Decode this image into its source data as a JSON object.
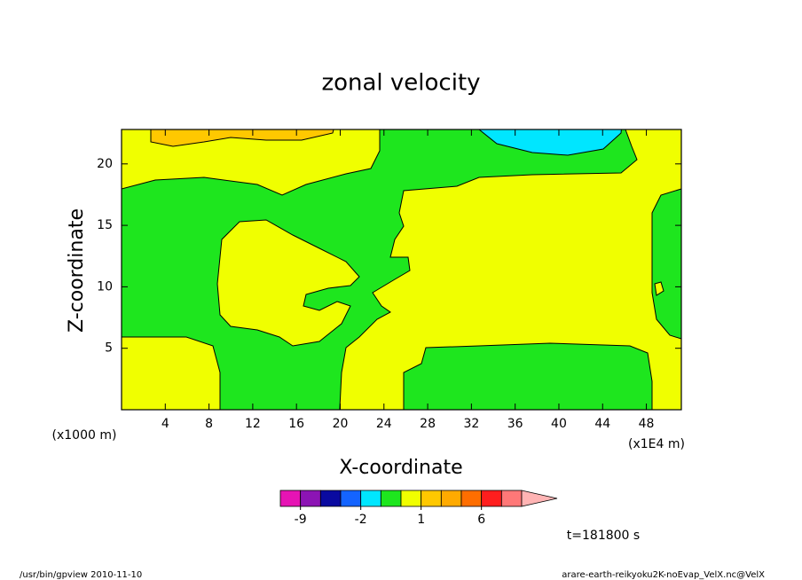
{
  "chart_data": {
    "type": "contour",
    "title": "zonal velocity",
    "xlabel": "X-coordinate",
    "ylabel": "Z-coordinate",
    "x_unit_label": "(x1000 m)",
    "x_unit_label_2": "(x1E4 m)",
    "xlim": [
      0,
      51.2
    ],
    "ylim": [
      0,
      22.8
    ],
    "xticks": [
      4,
      8,
      12,
      16,
      20,
      24,
      28,
      32,
      36,
      40,
      44,
      48
    ],
    "yticks": [
      5,
      10,
      15,
      20
    ],
    "colorbar": {
      "levels": [
        -12,
        -9,
        -6,
        -3,
        -2,
        -1,
        0,
        1,
        2,
        3,
        6,
        9,
        12
      ],
      "colors": [
        "#e614b4",
        "#8c14b4",
        "#0a0aa0",
        "#1464ff",
        "#00e6ff",
        "#1ee61e",
        "#f0ff00",
        "#ffc800",
        "#ffaa00",
        "#ff6e00",
        "#ff1e1e",
        "#ff7878"
      ],
      "extend_color": "#ffb4b4",
      "ticks": [
        -9,
        -2,
        1,
        6
      ]
    },
    "time_label": "t=181800 s",
    "footer_left": "/usr/bin/gpview   2010-11-10",
    "footer_right": "arare-earth-reikyoku2K-noEvap_VelX.nc@VelX"
  }
}
